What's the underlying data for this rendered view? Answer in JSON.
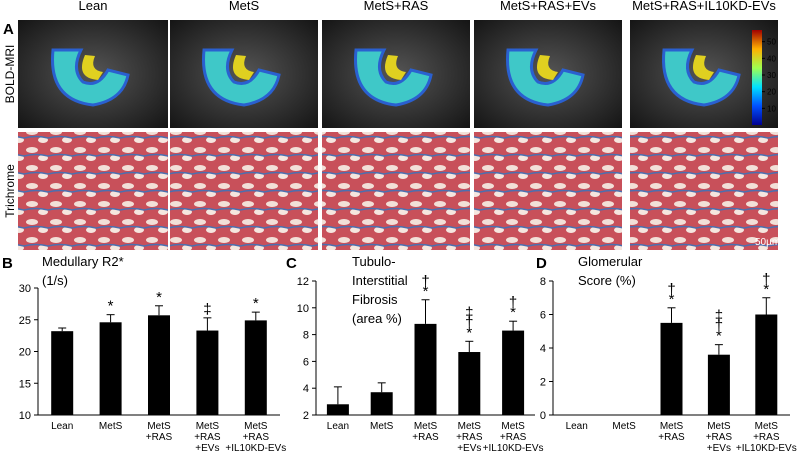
{
  "figure": {
    "panel": "A",
    "columns": [
      "Lean",
      "MetS",
      "MetS+RAS",
      "MetS+RAS+EVs",
      "MetS+RAS+IL10KD-EVs"
    ],
    "rows": [
      "BOLD-MRI",
      "Trichrome"
    ],
    "colorbar": {
      "ylim": [
        0,
        57
      ],
      "yticks": [
        10,
        20,
        30,
        40,
        50
      ]
    },
    "scale_bar": "50µm"
  },
  "chart_data": [
    {
      "type": "bar",
      "panel": "B",
      "title": "Medullary R2*\n(1/s)",
      "categories": [
        "Lean",
        "MetS",
        "MetS\n+RAS",
        "MetS\n+RAS\n+EVs",
        "MetS\n+RAS\n+IL10KD-EVs"
      ],
      "values": [
        23.2,
        24.6,
        25.7,
        23.3,
        24.9
      ],
      "errors": [
        0.5,
        1.2,
        1.5,
        2.0,
        1.3
      ],
      "annotations": [
        null,
        "*",
        "*",
        "‡",
        "*"
      ],
      "color": "#000000",
      "ylim": [
        10,
        30
      ],
      "yticks": [
        10,
        15,
        20,
        25,
        30
      ]
    },
    {
      "type": "bar",
      "panel": "C",
      "title": "Tubulo-\nInterstitial\nFibrosis\n(area %)",
      "categories": [
        "Lean",
        "MetS",
        "MetS\n+RAS",
        "MetS\n+RAS\n+EVs",
        "MetS\n+RAS\n+IL10KD-EVs"
      ],
      "values": [
        2.8,
        3.7,
        8.8,
        6.7,
        8.3
      ],
      "errors": [
        1.3,
        0.7,
        1.8,
        0.8,
        0.7
      ],
      "annotations": [
        null,
        null,
        "†\n*",
        "‡\n†\n*",
        "†\n*"
      ],
      "color": "#000000",
      "ylim": [
        2,
        12
      ],
      "yticks": [
        2,
        4,
        6,
        8,
        10,
        12
      ]
    },
    {
      "type": "bar",
      "panel": "D",
      "title": "Glomerular\nScore (%)",
      "categories": [
        "Lean",
        "MetS",
        "MetS\n+RAS",
        "MetS\n+RAS\n+EVs",
        "MetS\n+RAS\n+IL10KD-EVs"
      ],
      "values": [
        0,
        0,
        5.5,
        3.6,
        6.0
      ],
      "errors": [
        0,
        0,
        0.9,
        0.6,
        1.0
      ],
      "annotations": [
        null,
        null,
        "†\n*",
        "‡\n†\n*",
        "†\n*"
      ],
      "color": "#000000",
      "ylim": [
        0,
        8
      ],
      "yticks": [
        0,
        2,
        4,
        6,
        8
      ]
    }
  ]
}
